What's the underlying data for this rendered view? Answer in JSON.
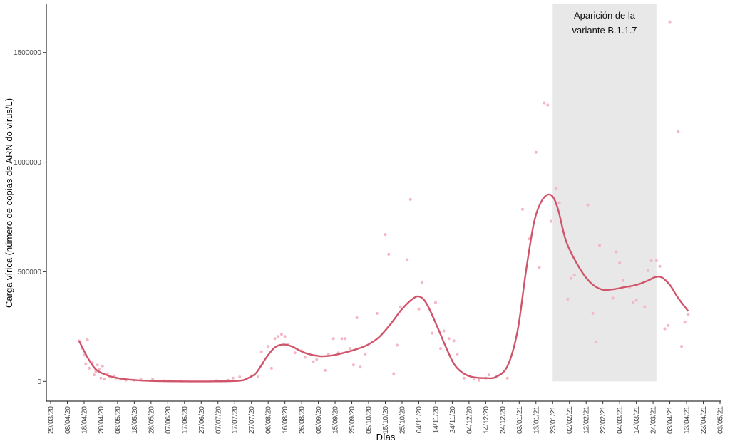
{
  "chart_data": {
    "type": "scatter",
    "xlabel": "Días",
    "ylabel": "Carga vírica (número de copias de ARN do virus/L)",
    "x_ticks": [
      "29/03/20",
      "08/04/20",
      "18/04/20",
      "28/04/20",
      "08/05/20",
      "18/05/20",
      "28/05/20",
      "07/06/20",
      "17/06/20",
      "27/06/20",
      "07/07/20",
      "17/07/20",
      "27/07/20",
      "06/08/20",
      "16/08/20",
      "26/08/20",
      "05/09/20",
      "15/09/20",
      "25/09/20",
      "05/10/20",
      "15/10/20",
      "25/10/20",
      "04/11/20",
      "14/11/20",
      "24/11/20",
      "04/12/20",
      "14/12/20",
      "24/12/20",
      "03/01/21",
      "13/01/21",
      "23/01/21",
      "02/02/21",
      "12/02/21",
      "22/02/21",
      "04/03/21",
      "14/03/21",
      "24/03/21",
      "03/04/21",
      "13/04/21",
      "23/04/21",
      "03/05/21"
    ],
    "y_ticks": [
      0,
      500000,
      1000000,
      1500000
    ],
    "y_tick_labels": [
      "0",
      "500000",
      "1000000",
      "1500000"
    ],
    "xlim": [
      "2020-03-29",
      "2021-05-03"
    ],
    "ylim": [
      -90000,
      1720000
    ],
    "grid": false,
    "annotation": {
      "text_line1": "Aparición de la",
      "text_line2": "variante B.1.1.7",
      "x_start": "2021-01-23",
      "x_end": "2021-03-26"
    },
    "colors": {
      "line": "#d0546a",
      "points": "#f4b6c4",
      "shade": "#e8e8e8"
    },
    "series": [
      {
        "kind": "points",
        "points": [
          [
            "2020-04-15",
            185000
          ],
          [
            "2020-04-17",
            150000
          ],
          [
            "2020-04-18",
            120000
          ],
          [
            "2020-04-19",
            80000
          ],
          [
            "2020-04-20",
            190000
          ],
          [
            "2020-04-21",
            60000
          ],
          [
            "2020-04-23",
            85000
          ],
          [
            "2020-04-24",
            30000
          ],
          [
            "2020-04-25",
            45000
          ],
          [
            "2020-04-26",
            75000
          ],
          [
            "2020-04-27",
            55000
          ],
          [
            "2020-04-28",
            15000
          ],
          [
            "2020-04-29",
            70000
          ],
          [
            "2020-04-30",
            10000
          ],
          [
            "2020-05-02",
            35000
          ],
          [
            "2020-05-03",
            20000
          ],
          [
            "2020-05-06",
            25000
          ],
          [
            "2020-05-07",
            15000
          ],
          [
            "2020-05-10",
            10000
          ],
          [
            "2020-05-13",
            5000
          ],
          [
            "2020-05-18",
            5000
          ],
          [
            "2020-05-22",
            8000
          ],
          [
            "2020-05-29",
            10000
          ],
          [
            "2020-06-05",
            3000
          ],
          [
            "2020-06-15",
            2000
          ],
          [
            "2020-07-06",
            3000
          ],
          [
            "2020-07-13",
            5000
          ],
          [
            "2020-07-16",
            15000
          ],
          [
            "2020-07-20",
            20000
          ],
          [
            "2020-07-24",
            10000
          ],
          [
            "2020-07-27",
            25000
          ],
          [
            "2020-07-31",
            20000
          ],
          [
            "2020-08-02",
            135000
          ],
          [
            "2020-08-03",
            80000
          ],
          [
            "2020-08-06",
            160000
          ],
          [
            "2020-08-08",
            60000
          ],
          [
            "2020-08-10",
            195000
          ],
          [
            "2020-08-12",
            205000
          ],
          [
            "2020-08-14",
            215000
          ],
          [
            "2020-08-16",
            205000
          ],
          [
            "2020-08-18",
            170000
          ],
          [
            "2020-08-22",
            130000
          ],
          [
            "2020-08-26",
            140000
          ],
          [
            "2020-08-28",
            110000
          ],
          [
            "2020-09-02",
            90000
          ],
          [
            "2020-09-04",
            100000
          ],
          [
            "2020-09-09",
            50000
          ],
          [
            "2020-09-11",
            125000
          ],
          [
            "2020-09-14",
            195000
          ],
          [
            "2020-09-17",
            130000
          ],
          [
            "2020-09-19",
            195000
          ],
          [
            "2020-09-21",
            195000
          ],
          [
            "2020-09-24",
            150000
          ],
          [
            "2020-09-26",
            75000
          ],
          [
            "2020-09-28",
            290000
          ],
          [
            "2020-09-30",
            65000
          ],
          [
            "2020-10-03",
            125000
          ],
          [
            "2020-10-10",
            310000
          ],
          [
            "2020-10-15",
            670000
          ],
          [
            "2020-10-17",
            580000
          ],
          [
            "2020-10-20",
            35000
          ],
          [
            "2020-10-22",
            165000
          ],
          [
            "2020-10-24",
            340000
          ],
          [
            "2020-10-28",
            555000
          ],
          [
            "2020-10-30",
            830000
          ],
          [
            "2020-11-04",
            330000
          ],
          [
            "2020-11-06",
            450000
          ],
          [
            "2020-11-12",
            220000
          ],
          [
            "2020-11-14",
            360000
          ],
          [
            "2020-11-17",
            150000
          ],
          [
            "2020-11-19",
            230000
          ],
          [
            "2020-11-22",
            195000
          ],
          [
            "2020-11-25",
            185000
          ],
          [
            "2020-11-27",
            125000
          ],
          [
            "2020-12-01",
            15000
          ],
          [
            "2020-12-07",
            10000
          ],
          [
            "2020-12-10",
            5000
          ],
          [
            "2020-12-14",
            15000
          ],
          [
            "2020-12-16",
            30000
          ],
          [
            "2020-12-20",
            20000
          ],
          [
            "2020-12-27",
            15000
          ],
          [
            "2021-01-05",
            785000
          ],
          [
            "2021-01-09",
            650000
          ],
          [
            "2021-01-13",
            1045000
          ],
          [
            "2021-01-15",
            520000
          ],
          [
            "2021-01-18",
            1270000
          ],
          [
            "2021-01-20",
            1260000
          ],
          [
            "2021-01-22",
            730000
          ],
          [
            "2021-01-25",
            880000
          ],
          [
            "2021-01-27",
            815000
          ],
          [
            "2021-02-01",
            375000
          ],
          [
            "2021-02-03",
            470000
          ],
          [
            "2021-02-05",
            485000
          ],
          [
            "2021-02-13",
            805000
          ],
          [
            "2021-02-16",
            310000
          ],
          [
            "2021-02-18",
            180000
          ],
          [
            "2021-02-20",
            620000
          ],
          [
            "2021-02-28",
            380000
          ],
          [
            "2021-03-02",
            590000
          ],
          [
            "2021-03-04",
            540000
          ],
          [
            "2021-03-06",
            460000
          ],
          [
            "2021-03-10",
            430000
          ],
          [
            "2021-03-12",
            360000
          ],
          [
            "2021-03-14",
            370000
          ],
          [
            "2021-03-19",
            340000
          ],
          [
            "2021-03-21",
            505000
          ],
          [
            "2021-03-23",
            550000
          ],
          [
            "2021-03-26",
            550000
          ],
          [
            "2021-03-28",
            525000
          ],
          [
            "2021-03-31",
            240000
          ],
          [
            "2021-04-02",
            255000
          ],
          [
            "2021-04-03",
            1640000
          ],
          [
            "2021-04-08",
            1140000
          ],
          [
            "2021-04-10",
            160000
          ],
          [
            "2021-04-12",
            270000
          ],
          [
            "2021-04-14",
            305000
          ]
        ]
      },
      {
        "kind": "line",
        "points": [
          [
            "2020-04-15",
            185000
          ],
          [
            "2020-04-20",
            110000
          ],
          [
            "2020-04-25",
            55000
          ],
          [
            "2020-05-01",
            30000
          ],
          [
            "2020-05-08",
            15000
          ],
          [
            "2020-05-18",
            6000
          ],
          [
            "2020-05-28",
            2000
          ],
          [
            "2020-06-15",
            0
          ],
          [
            "2020-07-05",
            0
          ],
          [
            "2020-07-20",
            3000
          ],
          [
            "2020-07-25",
            15000
          ],
          [
            "2020-07-30",
            40000
          ],
          [
            "2020-08-05",
            110000
          ],
          [
            "2020-08-10",
            155000
          ],
          [
            "2020-08-15",
            168000
          ],
          [
            "2020-08-20",
            160000
          ],
          [
            "2020-08-25",
            140000
          ],
          [
            "2020-08-30",
            125000
          ],
          [
            "2020-09-06",
            115000
          ],
          [
            "2020-09-13",
            118000
          ],
          [
            "2020-09-20",
            130000
          ],
          [
            "2020-09-27",
            145000
          ],
          [
            "2020-10-04",
            165000
          ],
          [
            "2020-10-11",
            200000
          ],
          [
            "2020-10-18",
            260000
          ],
          [
            "2020-10-25",
            330000
          ],
          [
            "2020-11-01",
            380000
          ],
          [
            "2020-11-05",
            385000
          ],
          [
            "2020-11-09",
            350000
          ],
          [
            "2020-11-15",
            250000
          ],
          [
            "2020-11-20",
            160000
          ],
          [
            "2020-11-25",
            80000
          ],
          [
            "2020-11-30",
            40000
          ],
          [
            "2020-12-06",
            20000
          ],
          [
            "2020-12-14",
            15000
          ],
          [
            "2020-12-20",
            20000
          ],
          [
            "2020-12-27",
            70000
          ],
          [
            "2021-01-02",
            230000
          ],
          [
            "2021-01-07",
            500000
          ],
          [
            "2021-01-12",
            730000
          ],
          [
            "2021-01-17",
            830000
          ],
          [
            "2021-01-22",
            850000
          ],
          [
            "2021-01-26",
            790000
          ],
          [
            "2021-01-31",
            640000
          ],
          [
            "2021-02-07",
            530000
          ],
          [
            "2021-02-14",
            455000
          ],
          [
            "2021-02-21",
            420000
          ],
          [
            "2021-02-28",
            420000
          ],
          [
            "2021-03-07",
            430000
          ],
          [
            "2021-03-14",
            440000
          ],
          [
            "2021-03-21",
            460000
          ],
          [
            "2021-03-25",
            475000
          ],
          [
            "2021-03-29",
            475000
          ],
          [
            "2021-04-03",
            440000
          ],
          [
            "2021-04-08",
            380000
          ],
          [
            "2021-04-14",
            320000
          ]
        ]
      }
    ]
  }
}
